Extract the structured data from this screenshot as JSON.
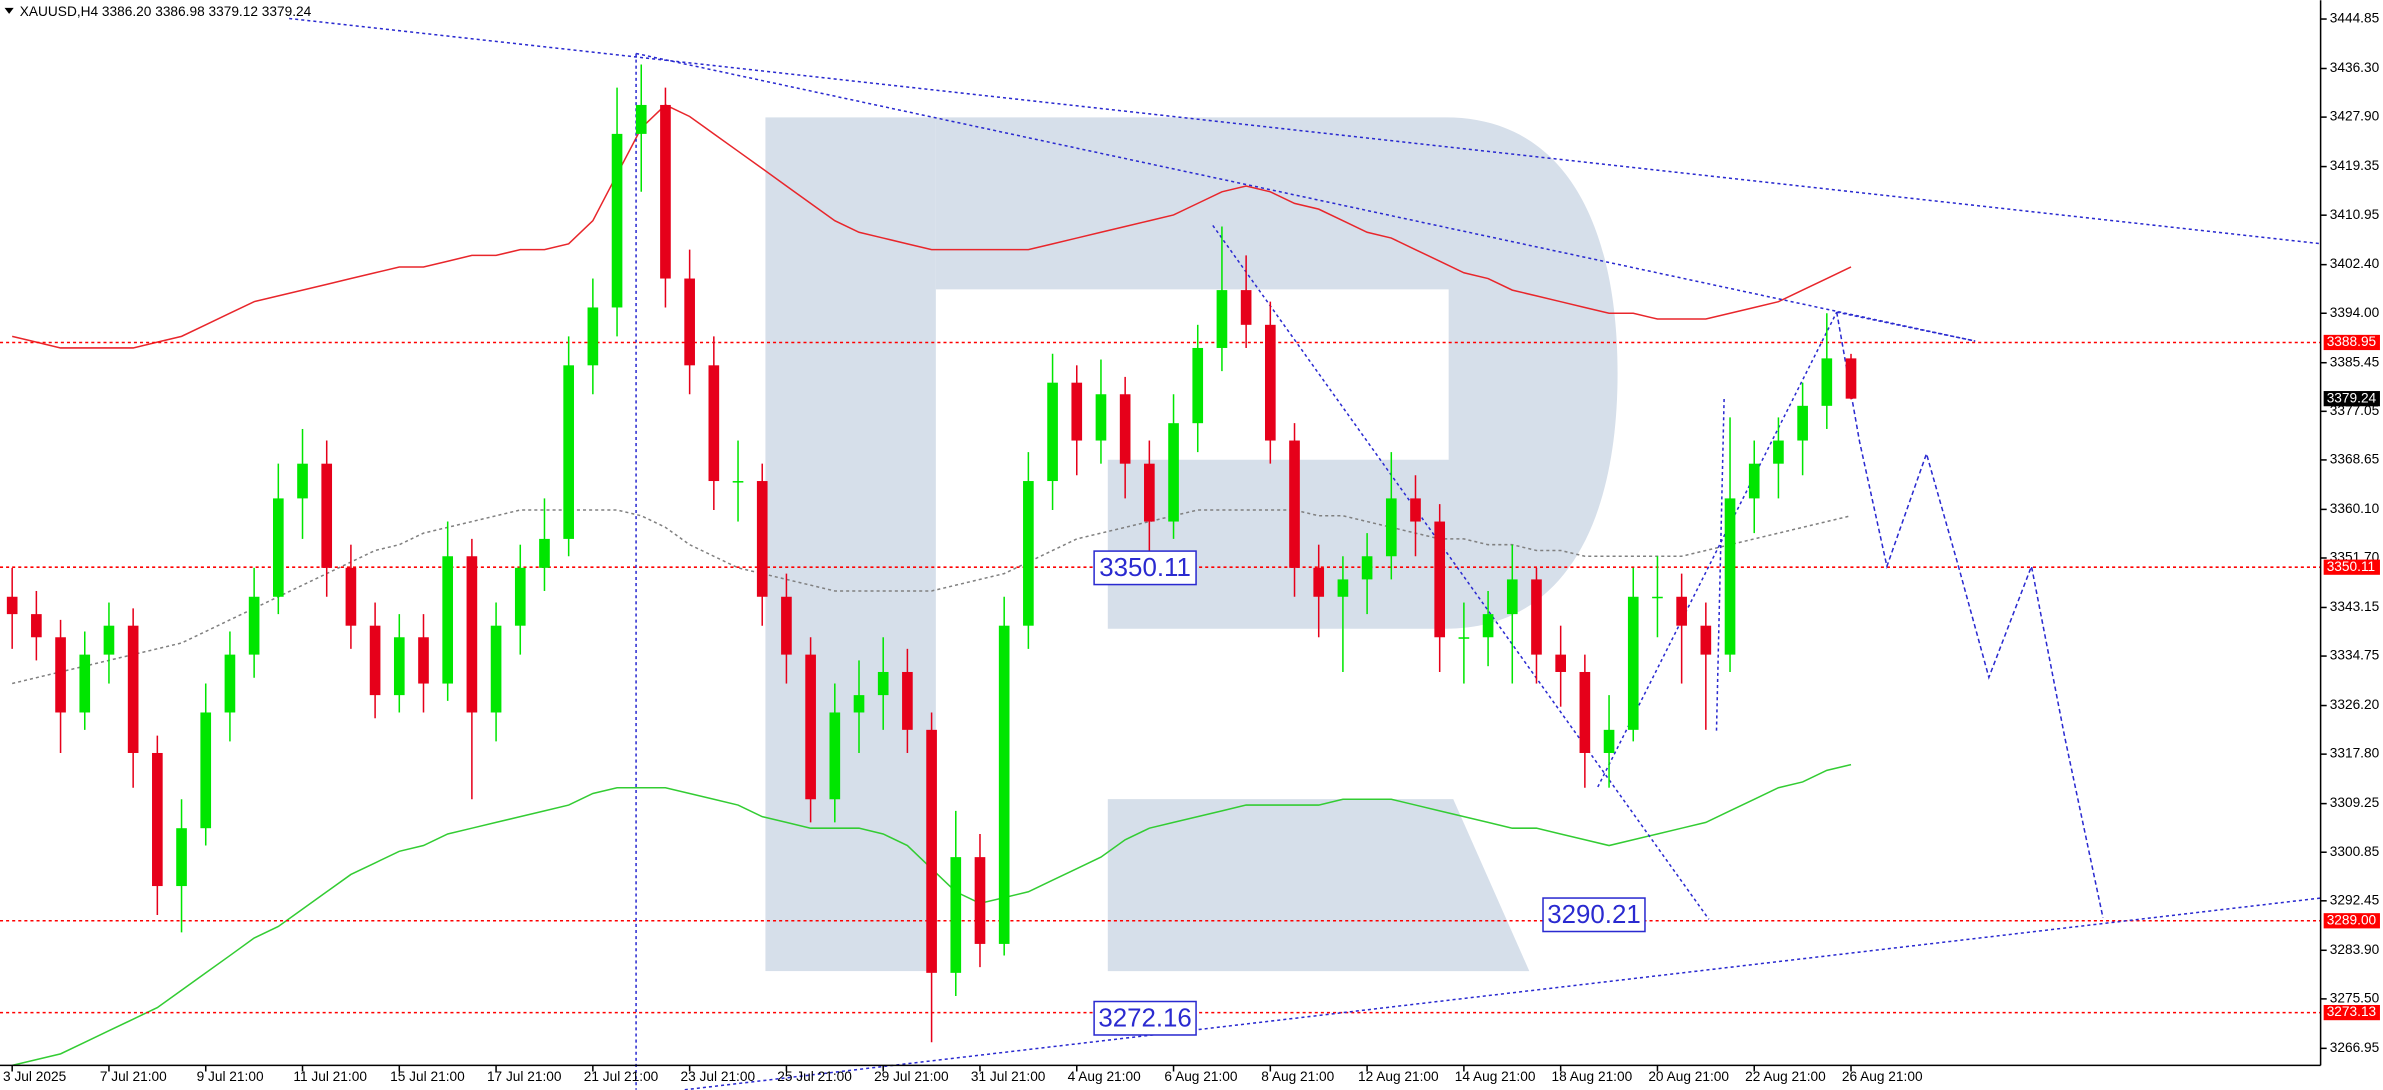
{
  "chart_data": {
    "type": "candlestick",
    "title": "XAUUSD,H4  3386.20 3386.98 3379.12 3379.24",
    "categories": [
      "3 Jul 2025",
      null,
      null,
      null,
      "7 Jul 21:00",
      null,
      null,
      null,
      "9 Jul 21:00",
      null,
      null,
      null,
      "11 Jul 21:00",
      null,
      null,
      null,
      "15 Jul 21:00",
      null,
      null,
      null,
      "17 Jul 21:00",
      null,
      null,
      null,
      "21 Jul 21:00",
      null,
      null,
      null,
      "23 Jul 21:00",
      null,
      null,
      null,
      "25 Jul 21:00",
      null,
      null,
      null,
      "29 Jul 21:00",
      null,
      null,
      null,
      "31 Jul 21:00",
      null,
      null,
      null,
      "4 Aug 21:00",
      null,
      null,
      null,
      "6 Aug 21:00",
      null,
      null,
      null,
      "8 Aug 21:00",
      null,
      null,
      null,
      "12 Aug 21:00",
      null,
      null,
      null,
      "14 Aug 21:00",
      null,
      null,
      null,
      "18 Aug 21:00",
      null,
      null,
      null,
      "20 Aug 21:00",
      null,
      null,
      null,
      "22 Aug 21:00",
      null,
      null,
      null,
      "26 Aug 21:00"
    ],
    "open": [
      3345,
      3342,
      3338,
      3325,
      3335,
      3340,
      3318,
      3295,
      3305,
      3325,
      3335,
      3345,
      3362,
      3368,
      3350,
      3340,
      3328,
      3338,
      3330,
      3352,
      3325,
      3340,
      3350,
      3355,
      3385,
      3395,
      3425,
      3430,
      3400,
      3385,
      3365,
      3365,
      3345,
      3335,
      3310,
      3325,
      3328,
      3332,
      3322,
      3280,
      3300,
      3285,
      3340,
      3365,
      3382,
      3372,
      3380,
      3368,
      3358,
      3375,
      3388,
      3398,
      3392,
      3372,
      3350,
      3345,
      3348,
      3352,
      3362,
      3358,
      3338,
      3338,
      3342,
      3348,
      3335,
      3332,
      3318,
      3322,
      3345,
      3345,
      3340,
      3335,
      3362,
      3368,
      3372,
      3378,
      3386.2
    ],
    "high": [
      3350,
      3346,
      3341,
      3339,
      3344,
      3343,
      3321,
      3310,
      3330,
      3339,
      3350,
      3368,
      3374,
      3372,
      3354,
      3344,
      3342,
      3342,
      3358,
      3355,
      3344,
      3354,
      3362,
      3390,
      3400,
      3433,
      3437,
      3433,
      3405,
      3390,
      3372,
      3368,
      3349,
      3338,
      3330,
      3334,
      3338,
      3336,
      3325,
      3308,
      3304,
      3345,
      3370,
      3387,
      3385,
      3386,
      3383,
      3372,
      3380,
      3392,
      3409,
      3404,
      3396,
      3375,
      3354,
      3352,
      3356,
      3370,
      3366,
      3361,
      3344,
      3346,
      3354,
      3350,
      3340,
      3335,
      3328,
      3350,
      3352,
      3349,
      3344,
      3376,
      3372,
      3376,
      3382,
      3394,
      3386.98
    ],
    "low": [
      3336,
      3334,
      3318,
      3322,
      3330,
      3312,
      3290,
      3287,
      3302,
      3320,
      3331,
      3342,
      3355,
      3345,
      3336,
      3324,
      3325,
      3325,
      3327,
      3310,
      3320,
      3335,
      3346,
      3352,
      3380,
      3390,
      3415,
      3395,
      3380,
      3360,
      3358,
      3340,
      3330,
      3306,
      3306,
      3318,
      3322,
      3318,
      3268,
      3276,
      3281,
      3283,
      3336,
      3360,
      3366,
      3368,
      3362,
      3352,
      3355,
      3370,
      3384,
      3388,
      3368,
      3345,
      3338,
      3332,
      3342,
      3348,
      3352,
      3332,
      3330,
      3333,
      3330,
      3330,
      3326,
      3312,
      3312,
      3320,
      3338,
      3330,
      3322,
      3332,
      3356,
      3362,
      3366,
      3374,
      3379.12
    ],
    "close": [
      3342,
      3338,
      3325,
      3335,
      3340,
      3318,
      3295,
      3305,
      3325,
      3335,
      3345,
      3362,
      3368,
      3350,
      3340,
      3328,
      3338,
      3330,
      3352,
      3325,
      3340,
      3350,
      3355,
      3385,
      3395,
      3425,
      3430,
      3400,
      3385,
      3365,
      3365,
      3345,
      3335,
      3310,
      3325,
      3328,
      3332,
      3322,
      3280,
      3300,
      3285,
      3340,
      3365,
      3382,
      3372,
      3380,
      3368,
      3358,
      3375,
      3388,
      3398,
      3392,
      3372,
      3350,
      3345,
      3348,
      3352,
      3362,
      3358,
      3338,
      3338,
      3342,
      3348,
      3335,
      3332,
      3318,
      3322,
      3345,
      3345,
      3340,
      3335,
      3362,
      3368,
      3372,
      3378,
      3386.2,
      3379.24
    ],
    "up_color": "#00e600",
    "down_color": "#e6001a",
    "lines": [
      {
        "color": "#e8262b",
        "style": "solid",
        "values": [
          3390,
          3389,
          3388,
          3388,
          3388,
          3388,
          3389,
          3390,
          3392,
          3394,
          3396,
          3397,
          3398,
          3399,
          3400,
          3401,
          3402,
          3402,
          3403,
          3404,
          3404,
          3405,
          3405,
          3406,
          3410,
          3418,
          3426,
          3430,
          3428,
          3425,
          3422,
          3419,
          3416,
          3413,
          3410,
          3408,
          3407,
          3406,
          3405,
          3405,
          3405,
          3405,
          3405,
          3406,
          3407,
          3408,
          3409,
          3410,
          3411,
          3413,
          3415,
          3416,
          3415,
          3413,
          3412,
          3410,
          3408,
          3407,
          3405,
          3403,
          3401,
          3400,
          3398,
          3397,
          3396,
          3395,
          3394,
          3394,
          3393,
          3393,
          3393,
          3394,
          3395,
          3396,
          3398,
          3400,
          3402
        ]
      },
      {
        "color": "#808080",
        "style": "dotted",
        "values": [
          3330,
          3331,
          3332,
          3333,
          3334,
          3335,
          3336,
          3337,
          3339,
          3341,
          3343,
          3345,
          3347,
          3349,
          3351,
          3353,
          3354,
          3356,
          3357,
          3358,
          3359,
          3360,
          3360,
          3360,
          3360,
          3360,
          3359,
          3357,
          3354,
          3352,
          3350,
          3349,
          3348,
          3347,
          3346,
          3346,
          3346,
          3346,
          3346,
          3347,
          3348,
          3349,
          3351,
          3353,
          3355,
          3356,
          3357,
          3358,
          3359,
          3360,
          3360,
          3360,
          3360,
          3360,
          3359,
          3359,
          3358,
          3357,
          3356,
          3355,
          3355,
          3354,
          3354,
          3353,
          3353,
          3352,
          3352,
          3352,
          3352,
          3352,
          3353,
          3354,
          3355,
          3356,
          3357,
          3358,
          3359
        ]
      },
      {
        "color": "#33cc33",
        "style": "solid",
        "values": [
          3264,
          3265,
          3266,
          3268,
          3270,
          3272,
          3274,
          3277,
          3280,
          3283,
          3286,
          3288,
          3291,
          3294,
          3297,
          3299,
          3301,
          3302,
          3304,
          3305,
          3306,
          3307,
          3308,
          3309,
          3311,
          3312,
          3312,
          3312,
          3311,
          3310,
          3309,
          3307,
          3306,
          3305,
          3305,
          3305,
          3304,
          3302,
          3298,
          3294,
          3292,
          3293,
          3294,
          3296,
          3298,
          3300,
          3303,
          3305,
          3306,
          3307,
          3308,
          3309,
          3309,
          3309,
          3309,
          3310,
          3310,
          3310,
          3309,
          3308,
          3307,
          3306,
          3305,
          3305,
          3304,
          3303,
          3302,
          3303,
          3304,
          3305,
          3306,
          3308,
          3310,
          3312,
          3313,
          3315,
          3316
        ]
      }
    ],
    "levels": [
      {
        "value": 3388.95,
        "label": "3388.95"
      },
      3350.11,
      {
        "value": 3289.0,
        "label": "3289.00"
      },
      3273.13
    ],
    "level_color": "#ff0000",
    "price_tag": 3379.24,
    "annotations": [
      "3350.11",
      "3290.21",
      "3272.16"
    ],
    "ylim": [
      3264,
      3448.1
    ],
    "yticks": [
      3444.85,
      {
        "value": 3436.3,
        "label": "3436.30"
      },
      {
        "value": 3427.9,
        "label": "3427.90"
      },
      3419.35,
      3410.95,
      {
        "value": 3402.4,
        "label": "3402.40"
      },
      {
        "value": 3394.0,
        "label": "3394.00"
      },
      3385.45,
      3377.05,
      3368.65,
      {
        "value": 3360.1,
        "label": "3360.10"
      },
      {
        "value": 3351.7,
        "label": "3351.70"
      },
      3343.15,
      3334.75,
      {
        "value": 3326.2,
        "label": "3326.20"
      },
      {
        "value": 3317.8,
        "label": "3317.80"
      },
      3309.25,
      3300.85,
      3292.45,
      {
        "value": 3283.9,
        "label": "3283.90"
      },
      {
        "value": 3275.5,
        "label": "3275.50"
      },
      3266.95
    ]
  }
}
